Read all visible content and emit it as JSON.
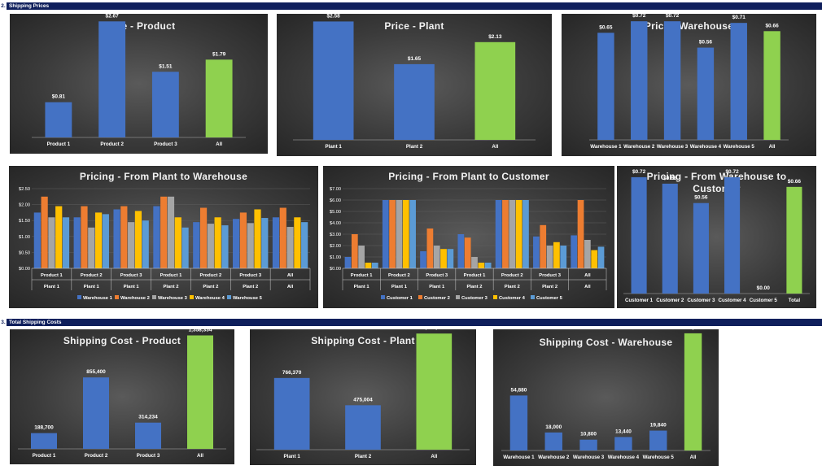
{
  "sections": {
    "s2": {
      "number": "2.",
      "label": "Shipping Prices"
    },
    "s3": {
      "number": "3.",
      "label": "Total Shipping Costs"
    }
  },
  "colors": {
    "blue": "#4472c4",
    "green": "#8fd14f",
    "orange": "#ed7d31",
    "gray": "#a5a5a5",
    "yellow": "#ffc000",
    "light_blue": "#5b9bd5",
    "section_bar": "#0f1f5c"
  },
  "chart_data": [
    {
      "id": "price-product",
      "type": "bar",
      "title": "Price - Product",
      "categories": [
        "Product 1",
        "Product 2",
        "Product 3",
        "All"
      ],
      "values": [
        0.81,
        2.67,
        1.51,
        1.79
      ],
      "labels": [
        "$0.81",
        "$2.67",
        "$1.51",
        "$1.79"
      ],
      "highlight_last": true,
      "ylim": [
        0,
        2.9
      ]
    },
    {
      "id": "price-plant",
      "type": "bar",
      "title": "Price - Plant",
      "categories": [
        "Plant 1",
        "Plant 2",
        "All"
      ],
      "values": [
        2.58,
        1.65,
        2.13
      ],
      "labels": [
        "$2.58",
        "$1.65",
        "$2.13"
      ],
      "highlight_last": true,
      "ylim": [
        0,
        2.8
      ]
    },
    {
      "id": "price-warehouse",
      "type": "bar",
      "title": "Price - Warehouse",
      "categories": [
        "Warehouse 1",
        "Warehouse 2",
        "Warehouse 3",
        "Warehouse 4",
        "Warehouse 5",
        "All"
      ],
      "values": [
        0.65,
        0.72,
        0.72,
        0.56,
        0.71,
        0.66
      ],
      "labels": [
        "$0.65",
        "$0.72",
        "$0.72",
        "$0.56",
        "$0.71",
        "$0.66"
      ],
      "highlight_last": true,
      "ylim": [
        0,
        0.78
      ]
    },
    {
      "id": "pricing-plant-warehouse",
      "type": "bar",
      "title": "Pricing - From Plant to Warehouse",
      "groups": [
        [
          "Product 1",
          "Plant 1"
        ],
        [
          "Product 2",
          "Plant 1"
        ],
        [
          "Product 3",
          "Plant 1"
        ],
        [
          "Product 1",
          "Plant 2"
        ],
        [
          "Product 2",
          "Plant 2"
        ],
        [
          "Product 3",
          "Plant 2"
        ],
        [
          "All",
          "All"
        ]
      ],
      "yticks": [
        "$0.00",
        "$0.50",
        "$1.00",
        "$1.50",
        "$2.00",
        "$2.50"
      ],
      "ylim": [
        0,
        2.5
      ],
      "grid": true,
      "legend_position": "bottom",
      "series": [
        {
          "name": "Warehouse 1",
          "values": [
            1.75,
            1.6,
            1.85,
            1.95,
            1.45,
            1.55,
            1.6
          ]
        },
        {
          "name": "Warehouse 2",
          "values": [
            2.25,
            1.95,
            1.95,
            2.25,
            1.9,
            1.75,
            1.9
          ]
        },
        {
          "name": "Warehouse 3",
          "values": [
            1.6,
            1.28,
            1.45,
            2.25,
            1.4,
            1.42,
            1.3
          ]
        },
        {
          "name": "Warehouse 4",
          "values": [
            1.95,
            1.75,
            1.8,
            1.6,
            1.6,
            1.85,
            1.6
          ]
        },
        {
          "name": "Warehouse 5",
          "values": [
            1.6,
            1.7,
            1.5,
            1.28,
            1.35,
            1.58,
            1.45
          ]
        }
      ]
    },
    {
      "id": "pricing-plant-customer",
      "type": "bar",
      "title": "Pricing - From Plant to Customer",
      "groups": [
        [
          "Product 1",
          "Plant 1"
        ],
        [
          "Product 2",
          "Plant 1"
        ],
        [
          "Product 3",
          "Plant 1"
        ],
        [
          "Product 1",
          "Plant 2"
        ],
        [
          "Product 2",
          "Plant 2"
        ],
        [
          "Product 3",
          "Plant 2"
        ],
        [
          "All",
          "All"
        ]
      ],
      "yticks": [
        "$0.00",
        "$1.00",
        "$2.00",
        "$3.00",
        "$4.00",
        "$5.00",
        "$6.00",
        "$7.00"
      ],
      "ylim": [
        0,
        7
      ],
      "grid": true,
      "legend_position": "bottom",
      "series": [
        {
          "name": "Customer 1",
          "values": [
            1.0,
            6.0,
            1.5,
            3.0,
            6.0,
            2.8,
            2.9
          ]
        },
        {
          "name": "Customer 2",
          "values": [
            3.0,
            6.0,
            3.5,
            2.7,
            6.0,
            3.8,
            6.0
          ]
        },
        {
          "name": "Customer 3",
          "values": [
            2.0,
            6.0,
            2.0,
            1.0,
            6.0,
            2.0,
            2.5
          ]
        },
        {
          "name": "Customer 4",
          "values": [
            0.5,
            6.0,
            1.7,
            0.5,
            6.0,
            2.3,
            1.6
          ]
        },
        {
          "name": "Customer 5",
          "values": [
            0.5,
            6.0,
            1.7,
            0.5,
            6.0,
            2.0,
            1.9
          ]
        }
      ]
    },
    {
      "id": "pricing-warehouse-customer",
      "type": "bar",
      "title": "Pricing - From Warehouse to Customer",
      "categories": [
        "Customer 1",
        "Customer 2",
        "Customer 3",
        "Customer 4",
        "Customer 5",
        "Total"
      ],
      "values": [
        0.72,
        0.68,
        0.56,
        0.72,
        0.0,
        0.66
      ],
      "labels": [
        "$0.72",
        "$0.68",
        "$0.56",
        "$0.72",
        "$0.00",
        "$0.66"
      ],
      "highlight_last": true,
      "ylim": [
        0,
        0.78
      ]
    },
    {
      "id": "cost-product",
      "type": "bar",
      "title": "Shipping Cost - Product",
      "categories": [
        "Product 1",
        "Product 2",
        "Product 3",
        "All"
      ],
      "values": [
        188700,
        855400,
        314234,
        1358334
      ],
      "labels": [
        "188,700",
        "855,400",
        "314,234",
        "1,358,334"
      ],
      "highlight_last": true,
      "ylim": [
        0,
        1480000
      ]
    },
    {
      "id": "cost-plant",
      "type": "bar",
      "title": "Shipping Cost - Plant",
      "categories": [
        "Plant 1",
        "Plant 2",
        "All"
      ],
      "values": [
        766370,
        475004,
        1241374
      ],
      "labels": [
        "766,370",
        "475,004",
        "1,241,374"
      ],
      "highlight_last": true,
      "ylim": [
        0,
        1330000
      ]
    },
    {
      "id": "cost-warehouse",
      "type": "bar",
      "title": "Shipping Cost - Warehouse",
      "categories": [
        "Warehouse 1",
        "Warehouse 2",
        "Warehouse 3",
        "Warehouse 4",
        "Warehouse 5",
        "All"
      ],
      "values": [
        54880,
        18000,
        10800,
        13440,
        19840,
        116960
      ],
      "labels": [
        "54,880",
        "18,000",
        "10,800",
        "13,440",
        "19,840",
        "116,960"
      ],
      "highlight_last": true,
      "ylim": [
        0,
        125000
      ]
    }
  ]
}
